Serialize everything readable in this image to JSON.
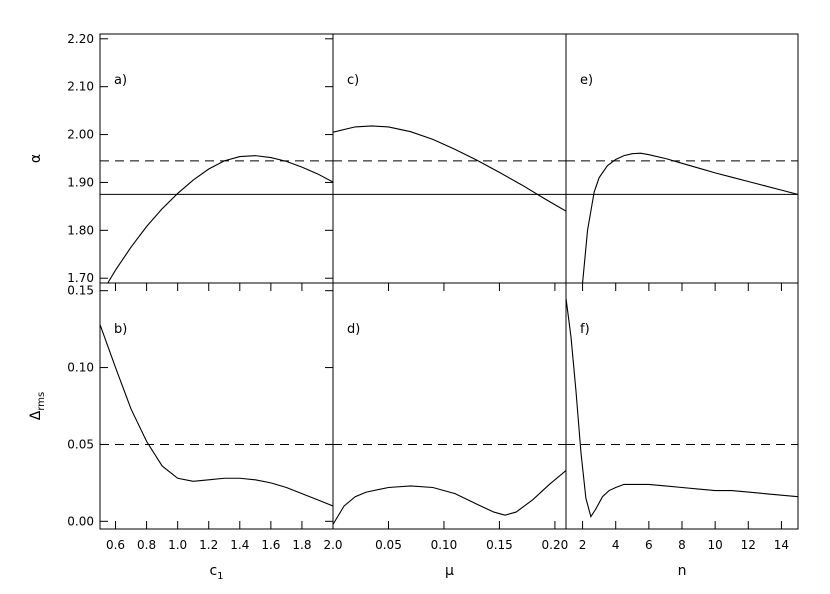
{
  "chart_data": [
    {
      "panel": "a)",
      "type": "line",
      "row": 0,
      "col": 0,
      "xlim": [
        0.5,
        2.0
      ],
      "ylim": [
        1.69,
        2.21
      ],
      "xticks": [],
      "xtick_labels": [],
      "yticks": [
        1.7,
        1.8,
        1.9,
        2.0,
        2.1,
        2.2
      ],
      "ytick_labels": [
        "1.70",
        "1.80",
        "1.90",
        "2.00",
        "2.10",
        "2.20"
      ],
      "ylabel": "α",
      "xlabel": "",
      "hlines": [
        {
          "y": 1.945,
          "style": "dashed"
        },
        {
          "y": 1.875,
          "style": "solid"
        }
      ],
      "series": [
        {
          "x": [
            0.55,
            0.6,
            0.7,
            0.8,
            0.9,
            1.0,
            1.1,
            1.2,
            1.3,
            1.4,
            1.5,
            1.6,
            1.7,
            1.8,
            1.9,
            2.0
          ],
          "y": [
            1.69,
            1.717,
            1.765,
            1.808,
            1.845,
            1.877,
            1.905,
            1.928,
            1.945,
            1.954,
            1.956,
            1.952,
            1.944,
            1.932,
            1.918,
            1.901
          ]
        }
      ]
    },
    {
      "panel": "c)",
      "type": "line",
      "row": 0,
      "col": 1,
      "xlim": [
        0.0,
        0.21
      ],
      "ylim": [
        1.69,
        2.21
      ],
      "xticks": [],
      "xtick_labels": [],
      "yticks": [],
      "ytick_labels": [],
      "xlabel": "",
      "ylabel": "",
      "hlines": [
        {
          "y": 1.945,
          "style": "dashed"
        },
        {
          "y": 1.875,
          "style": "solid"
        }
      ],
      "series": [
        {
          "x": [
            0.0,
            0.02,
            0.035,
            0.05,
            0.07,
            0.09,
            0.11,
            0.13,
            0.15,
            0.17,
            0.19,
            0.21
          ],
          "y": [
            2.005,
            2.016,
            2.018,
            2.016,
            2.006,
            1.99,
            1.969,
            1.946,
            1.921,
            1.895,
            1.867,
            1.84
          ]
        }
      ]
    },
    {
      "panel": "e)",
      "type": "line",
      "row": 0,
      "col": 2,
      "xlim": [
        1.0,
        15.0
      ],
      "ylim": [
        1.69,
        2.21
      ],
      "xticks": [],
      "xtick_labels": [],
      "yticks": [],
      "ytick_labels": [],
      "xlabel": "",
      "ylabel": "",
      "hlines": [
        {
          "y": 1.945,
          "style": "dashed"
        },
        {
          "y": 1.875,
          "style": "solid"
        }
      ],
      "series": [
        {
          "x": [
            2.0,
            2.3,
            2.7,
            3.0,
            3.5,
            4.0,
            4.5,
            5.0,
            5.5,
            6.0,
            7.0,
            8.0,
            9.0,
            10.0,
            11.0,
            12.0,
            13.0,
            14.0,
            15.0
          ],
          "y": [
            1.69,
            1.8,
            1.88,
            1.91,
            1.935,
            1.948,
            1.956,
            1.96,
            1.961,
            1.958,
            1.95,
            1.94,
            1.93,
            1.92,
            1.911,
            1.902,
            1.893,
            1.884,
            1.875
          ]
        }
      ]
    },
    {
      "panel": "b)",
      "type": "line",
      "row": 1,
      "col": 0,
      "xlim": [
        0.5,
        2.0
      ],
      "ylim": [
        -0.005,
        0.155
      ],
      "xticks": [
        0.6,
        0.8,
        1.0,
        1.2,
        1.4,
        1.6,
        1.8,
        2.0
      ],
      "xtick_labels": [
        "0.6",
        "0.8",
        "1.0",
        "1.2",
        "1.4",
        "1.6",
        "1.8",
        "2.0"
      ],
      "yticks": [
        0.0,
        0.05,
        0.1,
        0.15
      ],
      "ytick_labels": [
        "0.00",
        "0.05",
        "0.10",
        "0.15"
      ],
      "xlabel": "c",
      "xlabel_sub": "1",
      "ylabel": "Δ",
      "ylabel_sub": "rms",
      "hlines": [
        {
          "y": 0.05,
          "style": "dashed"
        }
      ],
      "series": [
        {
          "x": [
            0.5,
            0.6,
            0.7,
            0.8,
            0.9,
            1.0,
            1.1,
            1.2,
            1.3,
            1.4,
            1.5,
            1.6,
            1.7,
            1.8,
            1.9,
            2.0
          ],
          "y": [
            0.128,
            0.1,
            0.073,
            0.052,
            0.036,
            0.028,
            0.026,
            0.027,
            0.028,
            0.028,
            0.027,
            0.025,
            0.022,
            0.018,
            0.014,
            0.01
          ]
        }
      ]
    },
    {
      "panel": "d)",
      "type": "line",
      "row": 1,
      "col": 1,
      "xlim": [
        0.0,
        0.21
      ],
      "ylim": [
        -0.005,
        0.155
      ],
      "xticks": [
        0.0,
        0.05,
        0.1,
        0.15,
        0.2
      ],
      "xtick_labels": [
        "",
        "0.05",
        "0.10",
        "0.15",
        "0.20"
      ],
      "yticks": [],
      "ytick_labels": [],
      "xlabel": "μ",
      "ylabel": "",
      "hlines": [
        {
          "y": 0.05,
          "style": "dashed"
        }
      ],
      "series": [
        {
          "x": [
            0.0,
            0.01,
            0.02,
            0.03,
            0.05,
            0.07,
            0.09,
            0.11,
            0.13,
            0.145,
            0.155,
            0.165,
            0.18,
            0.195,
            0.21
          ],
          "y": [
            -0.002,
            0.01,
            0.016,
            0.019,
            0.022,
            0.023,
            0.022,
            0.018,
            0.011,
            0.006,
            0.004,
            0.006,
            0.014,
            0.024,
            0.033
          ]
        }
      ]
    },
    {
      "panel": "f)",
      "type": "line",
      "row": 1,
      "col": 2,
      "xlim": [
        1.0,
        15.0
      ],
      "ylim": [
        -0.005,
        0.155
      ],
      "xticks": [
        2,
        4,
        6,
        8,
        10,
        12,
        14
      ],
      "xtick_labels": [
        "2",
        "4",
        "6",
        "8",
        "10",
        "12",
        "14"
      ],
      "yticks": [],
      "ytick_labels": [],
      "xlabel": "n",
      "ylabel": "",
      "hlines": [
        {
          "y": 0.05,
          "style": "dashed"
        }
      ],
      "series": [
        {
          "x": [
            1.0,
            1.3,
            1.6,
            1.9,
            2.2,
            2.5,
            2.8,
            3.2,
            3.6,
            4.0,
            4.5,
            5.0,
            6.0,
            7.0,
            8.0,
            9.0,
            10.0,
            11.0,
            12.0,
            13.0,
            14.0,
            15.0
          ],
          "y": [
            0.145,
            0.12,
            0.085,
            0.045,
            0.015,
            0.003,
            0.008,
            0.016,
            0.02,
            0.022,
            0.024,
            0.024,
            0.024,
            0.023,
            0.022,
            0.021,
            0.02,
            0.02,
            0.019,
            0.018,
            0.017,
            0.016
          ]
        }
      ]
    }
  ]
}
